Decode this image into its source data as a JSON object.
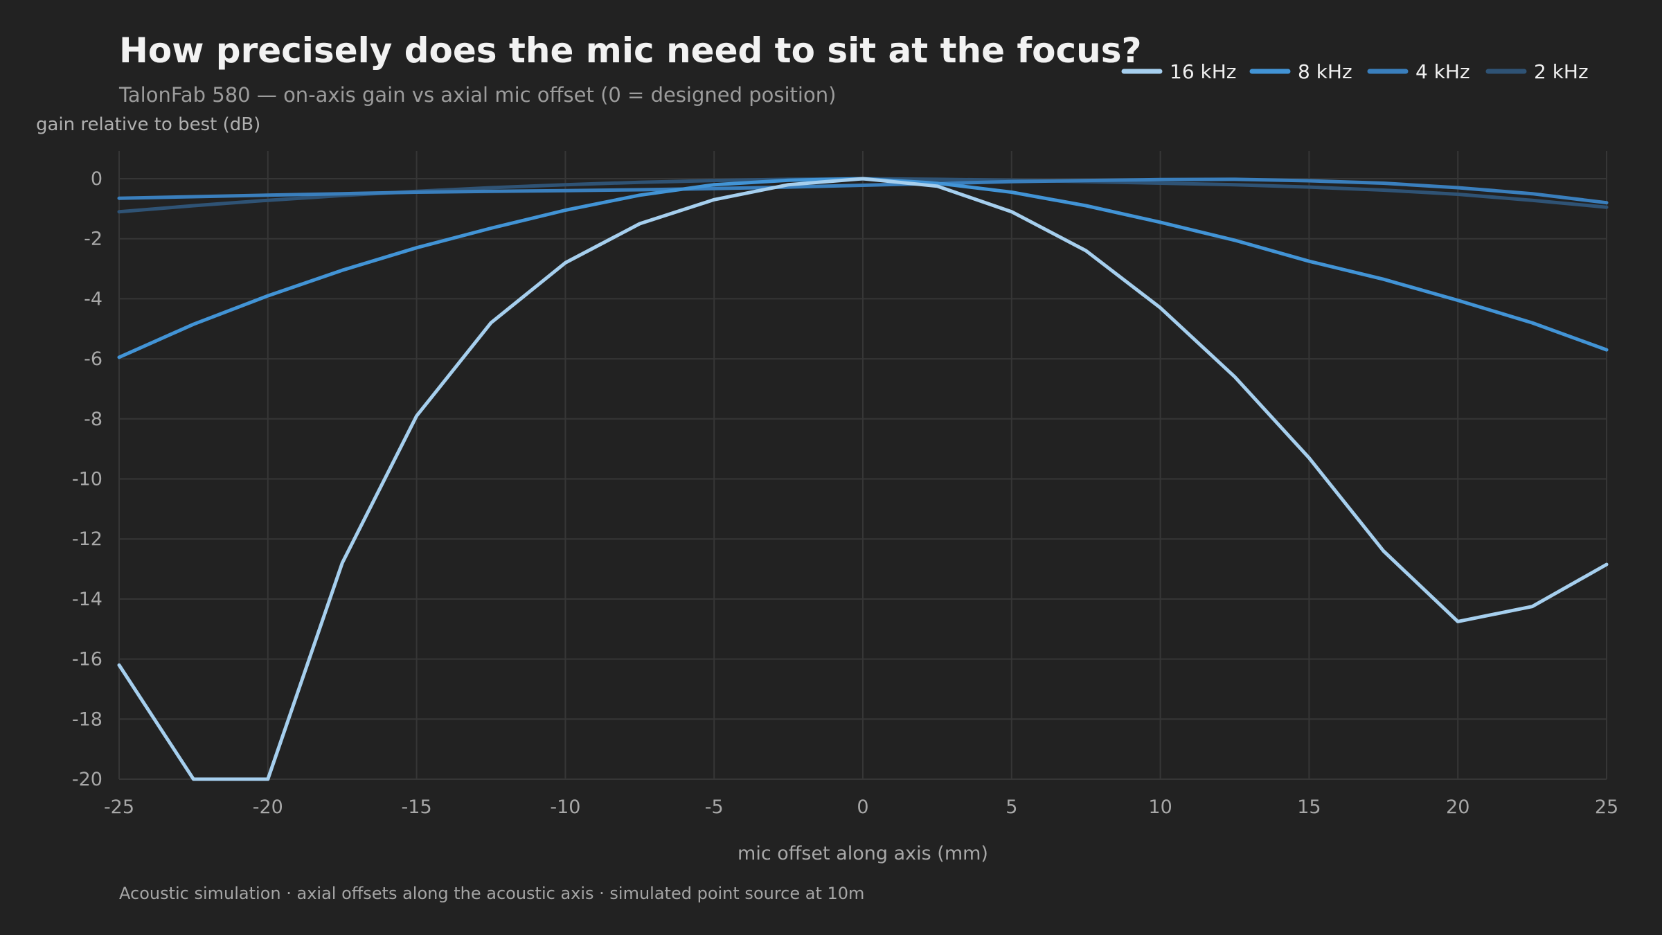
{
  "chart_data": {
    "type": "line",
    "title": "How precisely does the mic need to sit at the focus?",
    "subtitle": "TalonFab 580 — on-axis gain vs axial mic offset (0 = designed position)",
    "xlabel": "mic offset along axis (mm)",
    "ylabel": "gain relative to best (dB)",
    "footnote": "Acoustic simulation · axial offsets along the acoustic axis · simulated point source at 10m",
    "xlim": [
      -25,
      25
    ],
    "ylim": [
      -20,
      0
    ],
    "x_ticks": [
      -25,
      -20,
      -15,
      -10,
      -5,
      0,
      5,
      10,
      15,
      20,
      25
    ],
    "y_ticks": [
      0,
      -2,
      -4,
      -6,
      -8,
      -10,
      -12,
      -14,
      -16,
      -18,
      -20
    ],
    "grid": true,
    "legend_position": "top-right",
    "x": [
      -25,
      -22.5,
      -20,
      -17.5,
      -15,
      -12.5,
      -10,
      -7.5,
      -5,
      -2.5,
      0,
      2.5,
      5,
      7.5,
      10,
      12.5,
      15,
      17.5,
      20,
      22.5,
      25
    ],
    "series": [
      {
        "name": "16 kHz",
        "color": "#a6cfee",
        "width": 5,
        "values": [
          -16.2,
          -20,
          -20,
          -12.8,
          -7.9,
          -4.8,
          -2.8,
          -1.5,
          -0.7,
          -0.2,
          0,
          -0.25,
          -1.1,
          -2.4,
          -4.3,
          -6.6,
          -9.3,
          -12.4,
          -14.75,
          -14.25,
          -12.85
        ]
      },
      {
        "name": "8 kHz",
        "color": "#4294d6",
        "width": 5,
        "values": [
          -5.95,
          -4.85,
          -3.9,
          -3.05,
          -2.3,
          -1.65,
          -1.05,
          -0.55,
          -0.2,
          -0.05,
          0,
          -0.15,
          -0.45,
          -0.9,
          -1.45,
          -2.05,
          -2.75,
          -3.35,
          -4.05,
          -4.8,
          -5.7
        ]
      },
      {
        "name": "4 kHz",
        "color": "#3a7fbd",
        "width": 5,
        "values": [
          -0.65,
          -0.6,
          -0.55,
          -0.5,
          -0.45,
          -0.42,
          -0.4,
          -0.37,
          -0.33,
          -0.28,
          -0.22,
          -0.16,
          -0.1,
          -0.06,
          -0.03,
          -0.02,
          -0.07,
          -0.15,
          -0.3,
          -0.5,
          -0.8
        ]
      },
      {
        "name": "2 kHz",
        "color": "#2f5375",
        "width": 5,
        "values": [
          -1.1,
          -0.9,
          -0.72,
          -0.56,
          -0.42,
          -0.3,
          -0.2,
          -0.12,
          -0.06,
          -0.02,
          0,
          -0.02,
          -0.05,
          -0.1,
          -0.15,
          -0.2,
          -0.28,
          -0.38,
          -0.52,
          -0.72,
          -0.95
        ]
      }
    ]
  }
}
